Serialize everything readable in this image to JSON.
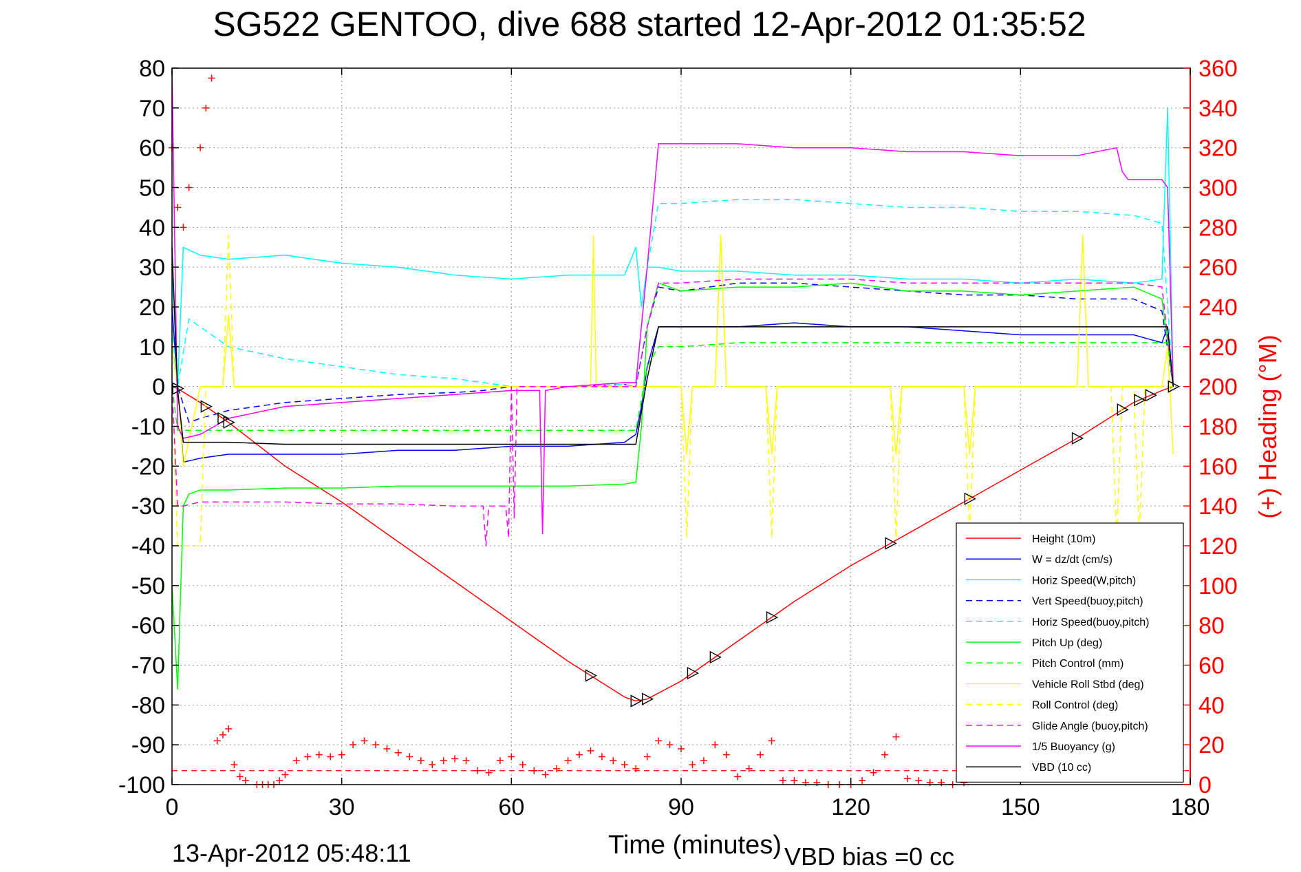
{
  "chart_data": {
    "type": "line",
    "title": "SG522 GENTOO, dive 688 started 12-Apr-2012 01:35:52",
    "xlabel": "Time (minutes)",
    "ylabel": "",
    "y2label": "(+) Heading (°M)",
    "xlim": [
      0,
      180
    ],
    "ylim": [
      -100,
      80
    ],
    "y2lim": [
      0,
      360
    ],
    "x_ticks": [
      0,
      30,
      60,
      90,
      120,
      150,
      180
    ],
    "y_ticks": [
      80,
      70,
      60,
      50,
      40,
      30,
      20,
      10,
      0,
      -10,
      -20,
      -30,
      -40,
      -50,
      -60,
      -70,
      -80,
      -90,
      -100
    ],
    "y2_ticks": [
      360,
      340,
      320,
      300,
      280,
      260,
      240,
      220,
      200,
      180,
      160,
      140,
      120,
      100,
      80,
      60,
      40,
      20,
      0
    ],
    "x_tick_labels": [
      "0",
      "30",
      "60",
      "90",
      "120",
      "150",
      "180"
    ],
    "y_tick_labels": [
      "80",
      "70",
      "60",
      "50",
      "40",
      "30",
      "20",
      "10",
      "0",
      "-10",
      "-20",
      "-30",
      "-40",
      "-50",
      "-60",
      "-70",
      "-80",
      "-90",
      "-100"
    ],
    "y2_tick_labels": [
      "360",
      "340",
      "320",
      "300",
      "280",
      "260",
      "240",
      "220",
      "200",
      "180",
      "160",
      "140",
      "120",
      "100",
      "80",
      "60",
      "40",
      "20",
      "0"
    ],
    "grid": true,
    "legend_position": "bottom-right",
    "footer_left": "13-Apr-2012 05:48:11",
    "footer_right": "VBD bias =0 cc",
    "series": [
      {
        "name": "Height (10m)",
        "color": "#ff0000",
        "dash": "solid",
        "x": [
          0,
          1,
          5,
          10,
          20,
          30,
          40,
          50,
          60,
          70,
          80,
          82,
          84,
          86,
          90,
          100,
          110,
          120,
          130,
          140,
          150,
          160,
          170,
          175,
          177
        ],
        "y": [
          0,
          -0.5,
          -4,
          -9,
          -20,
          -29,
          -39,
          -49,
          -59,
          -69,
          -78,
          -79,
          -78.5,
          -77,
          -74,
          -64,
          -54,
          -45,
          -37,
          -29,
          -21,
          -13,
          -4,
          -1,
          0
        ]
      },
      {
        "name": "W = dz/dt (cm/s)",
        "color": "#0000ff",
        "dash": "solid",
        "x": [
          0,
          1,
          2,
          5,
          10,
          20,
          30,
          40,
          50,
          60,
          70,
          80,
          82,
          83,
          84,
          86,
          90,
          100,
          110,
          120,
          130,
          140,
          150,
          160,
          170,
          175,
          176,
          177
        ],
        "y": [
          20,
          0,
          -19,
          -18,
          -17,
          -17,
          -17,
          -16,
          -16,
          -15,
          -15,
          -14,
          -12,
          -5,
          5,
          15,
          15,
          15,
          16,
          15,
          15,
          14,
          13,
          13,
          13,
          11,
          15,
          0
        ]
      },
      {
        "name": "Horiz Speed(W,pitch)",
        "color": "#00ffff",
        "dash": "solid",
        "x": [
          0,
          1,
          2,
          5,
          10,
          20,
          30,
          40,
          50,
          60,
          70,
          80,
          82,
          83,
          84,
          86,
          90,
          100,
          110,
          120,
          130,
          140,
          150,
          160,
          170,
          175,
          176,
          177
        ],
        "y": [
          30,
          0,
          35,
          33,
          32,
          33,
          31,
          30,
          28,
          27,
          28,
          28,
          35,
          20,
          30,
          30,
          29,
          29,
          28,
          28,
          27,
          27,
          26,
          27,
          26,
          27,
          70,
          0
        ]
      },
      {
        "name": "Vert Speed(buoy,pitch)",
        "color": "#0000ff",
        "dash": "dashed",
        "x": [
          0,
          1,
          3,
          5,
          10,
          20,
          30,
          40,
          50,
          55,
          60,
          70,
          80,
          82,
          84,
          86,
          90,
          100,
          110,
          120,
          130,
          140,
          150,
          160,
          170,
          175,
          177
        ],
        "y": [
          10,
          0,
          -9,
          -8,
          -6,
          -4,
          -3,
          -2,
          -1.5,
          -1,
          0,
          0,
          0.5,
          0,
          15,
          25,
          24,
          26,
          26,
          25,
          24,
          23,
          23,
          22,
          22,
          19,
          0
        ]
      },
      {
        "name": "Horiz Speed(buoy,pitch)",
        "color": "#00ffff",
        "dash": "dashed",
        "x": [
          0,
          1,
          3,
          5,
          10,
          20,
          30,
          40,
          50,
          55,
          60,
          70,
          80,
          82,
          84,
          86,
          90,
          100,
          110,
          120,
          130,
          140,
          150,
          160,
          170,
          175,
          177
        ],
        "y": [
          15,
          0,
          17,
          15,
          10,
          7,
          5,
          3,
          2,
          1,
          0,
          0,
          0.5,
          0,
          30,
          46,
          46,
          47,
          47,
          46,
          45,
          45,
          44,
          44,
          43,
          41,
          0
        ]
      },
      {
        "name": "Pitch Up (deg)",
        "color": "#00ff00",
        "dash": "solid",
        "x": [
          0,
          1,
          2,
          3,
          5,
          10,
          20,
          30,
          40,
          50,
          60,
          70,
          80,
          82,
          83,
          84,
          86,
          90,
          100,
          110,
          120,
          130,
          140,
          150,
          160,
          170,
          175,
          177
        ],
        "y": [
          -50,
          -76,
          -30,
          -27,
          -26,
          -26,
          -25.5,
          -25.5,
          -25,
          -25,
          -25,
          -25,
          -24.5,
          -24,
          -10,
          15,
          26,
          24,
          25,
          25,
          26,
          24,
          24,
          23,
          24,
          25,
          22,
          0
        ]
      },
      {
        "name": "Pitch Control (mm)",
        "color": "#00ff00",
        "dash": "dashed",
        "x": [
          0,
          1,
          2,
          5,
          10,
          20,
          30,
          40,
          50,
          60,
          70,
          80,
          82,
          84,
          86,
          90,
          100,
          110,
          120,
          130,
          140,
          150,
          160,
          170,
          175,
          177
        ],
        "y": [
          0,
          -11,
          -11,
          -11,
          -11,
          -11,
          -11,
          -11,
          -11,
          -11,
          -11,
          -11,
          -11,
          5,
          10,
          10,
          11,
          11,
          11,
          11,
          11,
          11,
          11,
          11,
          11,
          11
        ]
      },
      {
        "name": "Vehicle Roll Stbd (deg)",
        "color": "#ffff00",
        "dash": "solid",
        "x": [
          0,
          1,
          2,
          5,
          9,
          10,
          11,
          20,
          30,
          40,
          50,
          60,
          70,
          74,
          74.5,
          75,
          80,
          84,
          86,
          90,
          91,
          92,
          93,
          96,
          97,
          98,
          100,
          105,
          106,
          107,
          110,
          127,
          128,
          129,
          140,
          141,
          142,
          150,
          160,
          161,
          162,
          170,
          175,
          176,
          177
        ],
        "y": [
          10,
          0,
          -20,
          0,
          0,
          18,
          0,
          0,
          0,
          0,
          0,
          0,
          0,
          0,
          38,
          0,
          0,
          0,
          0,
          0,
          -17,
          0,
          0,
          0,
          38,
          0,
          0,
          0,
          -17,
          0,
          0,
          0,
          -17,
          0,
          0,
          -17,
          0,
          0,
          0,
          38,
          0,
          0,
          0,
          10,
          -17
        ]
      },
      {
        "name": "Roll Control (deg)",
        "color": "#ffff00",
        "dash": "dashed",
        "x": [
          0,
          1,
          2,
          5,
          6,
          9,
          10,
          11,
          20,
          30,
          40,
          50,
          60,
          70,
          80,
          84,
          86,
          90,
          91,
          92,
          93,
          96,
          97,
          98,
          100,
          105,
          106,
          107,
          110,
          127,
          128,
          129,
          140,
          141,
          142,
          150,
          160,
          166,
          167,
          168,
          169,
          170,
          171,
          172,
          175,
          177
        ],
        "y": [
          0,
          -40,
          -40,
          -40,
          0,
          0,
          38,
          0,
          0,
          0,
          0,
          0,
          0,
          0,
          0,
          0,
          0,
          0,
          -38,
          0,
          0,
          0,
          38,
          0,
          0,
          0,
          -38,
          0,
          0,
          0,
          -38,
          0,
          0,
          -38,
          0,
          0,
          0,
          0,
          -38,
          0,
          0,
          0,
          -38,
          0,
          0,
          0
        ]
      },
      {
        "name": "Glide Angle (buoy,pitch)",
        "color": "#ff00ff",
        "dash": "dashed",
        "x": [
          0,
          1,
          2,
          5,
          10,
          20,
          30,
          40,
          50,
          55,
          55.5,
          56,
          59,
          59.5,
          60,
          60.5,
          61,
          70,
          80,
          82,
          84,
          86,
          90,
          100,
          110,
          120,
          130,
          140,
          150,
          160,
          170,
          175,
          177
        ],
        "y": [
          0,
          -30,
          -30,
          -29,
          -29,
          -29,
          -29.5,
          -29.5,
          -30,
          -30,
          -40,
          -30,
          -30,
          -38,
          0,
          -33,
          0,
          0,
          0,
          0,
          15,
          26,
          26,
          27,
          27,
          27,
          26,
          26,
          26,
          26,
          26,
          25,
          0
        ]
      },
      {
        "name": "1/5 Buoyancy (g)",
        "color": "#ff00ff",
        "dash": "solid",
        "x": [
          0,
          1,
          2,
          5,
          10,
          20,
          30,
          40,
          50,
          60,
          65,
          65.5,
          66,
          70,
          80,
          82,
          84,
          86,
          90,
          100,
          110,
          120,
          130,
          140,
          150,
          160,
          167,
          168,
          169,
          170,
          175,
          176,
          177
        ],
        "y": [
          80,
          -10,
          -13,
          -12,
          -8,
          -5,
          -4,
          -3,
          -2,
          -1,
          -1,
          -37,
          -1,
          0,
          1,
          1,
          30,
          61,
          61,
          61,
          60,
          60,
          59,
          59,
          58,
          58,
          60,
          54,
          52,
          52,
          52,
          50,
          0
        ]
      },
      {
        "name": "VBD (10 cc)",
        "color": "#000000",
        "dash": "solid",
        "x": [
          0,
          1,
          2,
          5,
          10,
          20,
          30,
          40,
          50,
          60,
          70,
          80,
          82,
          84,
          86,
          90,
          100,
          110,
          120,
          130,
          140,
          150,
          160,
          170,
          175,
          176,
          177
        ],
        "y": [
          35,
          -1,
          -14,
          -14,
          -14,
          -14.5,
          -14.5,
          -14.5,
          -14.5,
          -14.5,
          -14.5,
          -14.5,
          -14.5,
          2,
          15,
          15,
          15,
          15,
          15,
          15,
          15,
          15,
          15,
          15,
          15,
          15,
          0
        ]
      }
    ],
    "heading_series": {
      "name": "(+) Heading",
      "color": "#ff0000",
      "axis": "right",
      "x": [
        0,
        1,
        2,
        3,
        5,
        6,
        7,
        8,
        9,
        10,
        11,
        12,
        13,
        15,
        16,
        17,
        18,
        19,
        20,
        22,
        24,
        26,
        28,
        30,
        32,
        34,
        36,
        38,
        40,
        42,
        44,
        46,
        48,
        50,
        52,
        54,
        56,
        58,
        60,
        62,
        64,
        66,
        68,
        70,
        72,
        74,
        76,
        78,
        80,
        82,
        84,
        86,
        88,
        90,
        92,
        94,
        96,
        98,
        100,
        102,
        104,
        106,
        108,
        110,
        112,
        114,
        116,
        118,
        120,
        122,
        124,
        126,
        128,
        130,
        132,
        134,
        136,
        138,
        140
      ],
      "y": [
        320,
        290,
        280,
        300,
        320,
        340,
        355,
        22,
        25,
        28,
        10,
        4,
        2,
        0,
        0,
        0,
        0,
        2,
        5,
        12,
        14,
        15,
        14,
        15,
        20,
        22,
        20,
        18,
        16,
        14,
        12,
        10,
        12,
        13,
        12,
        7,
        6,
        12,
        14,
        10,
        7,
        5,
        8,
        12,
        15,
        17,
        14,
        12,
        10,
        8,
        14,
        22,
        20,
        18,
        10,
        12,
        20,
        15,
        4,
        8,
        15,
        22,
        2,
        2,
        1,
        1,
        0,
        0,
        0,
        2,
        6,
        15,
        24,
        3,
        2,
        1,
        1,
        0,
        1
      ]
    },
    "heading_reference": {
      "value": 7,
      "color": "#ff0000",
      "dash": "dashed"
    },
    "glider_markers_x": [
      1,
      6,
      9,
      10,
      74,
      82,
      84,
      92,
      96,
      106,
      127,
      141,
      160,
      168,
      171,
      173,
      177
    ]
  }
}
